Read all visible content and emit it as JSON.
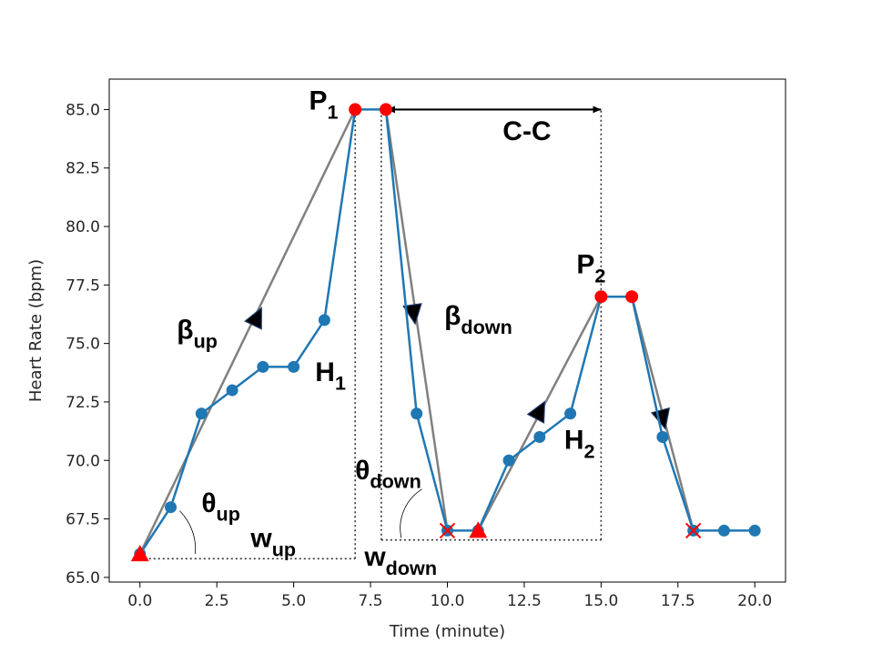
{
  "chart_data": {
    "type": "line",
    "xlabel": "Time (minute)",
    "ylabel": "Heart Rate (bpm)",
    "xlim": [
      -1,
      21
    ],
    "ylim": [
      64.8,
      86.3
    ],
    "xticks": [
      0,
      2.5,
      5,
      7.5,
      10,
      12.5,
      15,
      17.5,
      20
    ],
    "xtick_labels": [
      "0.0",
      "2.5",
      "5.0",
      "7.5",
      "10.0",
      "12.5",
      "15.0",
      "17.5",
      "20.0"
    ],
    "yticks": [
      65,
      67.5,
      70,
      72.5,
      75,
      77.5,
      80,
      82.5,
      85
    ],
    "ytick_labels": [
      "65.0",
      "67.5",
      "70.0",
      "72.5",
      "75.0",
      "77.5",
      "80.0",
      "82.5",
      "85.0"
    ],
    "grid": false,
    "series": [
      {
        "x": [
          0,
          1,
          2,
          3,
          4,
          5,
          6,
          7,
          8,
          9,
          10,
          11,
          12,
          13,
          14,
          15,
          16,
          17,
          18,
          19,
          20
        ],
        "y": [
          66,
          68,
          72,
          73,
          74,
          74,
          76,
          85,
          85,
          72,
          67,
          67,
          70,
          71,
          72,
          77,
          77,
          71,
          67,
          67,
          67
        ],
        "color": "#1f77b4"
      }
    ],
    "trend_lines": [
      {
        "x": [
          0,
          7
        ],
        "y": [
          66,
          85
        ],
        "color": "#808080"
      },
      {
        "x": [
          8,
          10
        ],
        "y": [
          85,
          67
        ],
        "color": "#808080"
      },
      {
        "x": [
          11,
          15
        ],
        "y": [
          67,
          77
        ],
        "color": "#808080"
      },
      {
        "x": [
          16,
          18
        ],
        "y": [
          77,
          67
        ],
        "color": "#808080"
      }
    ],
    "peaks": {
      "x": [
        7,
        8,
        15,
        16
      ],
      "y": [
        85,
        85,
        77,
        77
      ],
      "color": "#ff0000"
    },
    "valleys_start": {
      "x": [
        0,
        11
      ],
      "y": [
        66,
        67
      ],
      "color": "#ff0000"
    },
    "valleys_end": {
      "x": [
        10,
        18
      ],
      "y": [
        67,
        67
      ],
      "color": "#ff0000"
    },
    "arrows_on_trends": [
      {
        "x": 3.8,
        "y": 76.1,
        "dir": "up"
      },
      {
        "x": 8.9,
        "y": 76.3,
        "dir": "down"
      },
      {
        "x": 13.0,
        "y": 72.1,
        "dir": "up"
      },
      {
        "x": 17.0,
        "y": 71.8,
        "dir": "down"
      }
    ],
    "annotations": [
      {
        "id": "p1",
        "text": "P",
        "sub": "1",
        "x": 5.5,
        "y": 85,
        "size": 30
      },
      {
        "id": "p2",
        "text": "P",
        "sub": "2",
        "x": 14.2,
        "y": 78,
        "size": 30
      },
      {
        "id": "cc",
        "text": "C-C",
        "x": 11.8,
        "y": 83.7,
        "size": 30
      },
      {
        "id": "beta-up",
        "text": "β",
        "sub": "up",
        "x": 1.2,
        "y": 75.2,
        "size": 30
      },
      {
        "id": "beta-down",
        "text": "β",
        "sub": "down",
        "x": 9.9,
        "y": 75.8,
        "size": 30
      },
      {
        "id": "h1",
        "text": "H",
        "sub": "1",
        "x": 5.7,
        "y": 73.4,
        "size": 30
      },
      {
        "id": "h2",
        "text": "H",
        "sub": "2",
        "x": 13.8,
        "y": 70.5,
        "size": 30
      },
      {
        "id": "theta-down",
        "text": "θ",
        "sub": "down",
        "x": 7.0,
        "y": 69.2,
        "size": 30
      },
      {
        "id": "theta-up",
        "text": "θ",
        "sub": "up",
        "x": 2.0,
        "y": 67.8,
        "size": 30
      },
      {
        "id": "w-up",
        "text": "w",
        "sub": "up",
        "x": 3.6,
        "y": 66.3,
        "size": 30
      },
      {
        "id": "w-down",
        "text": "w",
        "sub": "down",
        "x": 7.3,
        "y": 65.5,
        "size": 30
      }
    ],
    "dotted_guides": [
      {
        "x": [
          0,
          7
        ],
        "y": [
          65.8,
          65.8
        ]
      },
      {
        "x": [
          7,
          7
        ],
        "y": [
          65.8,
          85
        ]
      },
      {
        "x": [
          7.85,
          15
        ],
        "y": [
          66.6,
          66.6
        ]
      },
      {
        "x": [
          7.85,
          7.85
        ],
        "y": [
          66.6,
          85
        ]
      },
      {
        "x": [
          15,
          15
        ],
        "y": [
          66.6,
          85
        ]
      }
    ],
    "double_arrow": {
      "x": [
        8,
        15
      ],
      "y": 85
    },
    "angle_arcs": [
      {
        "cx": 0,
        "cy": 66,
        "from": "up",
        "r": 1.8
      },
      {
        "cx": 10,
        "cy": 67,
        "from": "down",
        "r": 1.5
      }
    ]
  }
}
